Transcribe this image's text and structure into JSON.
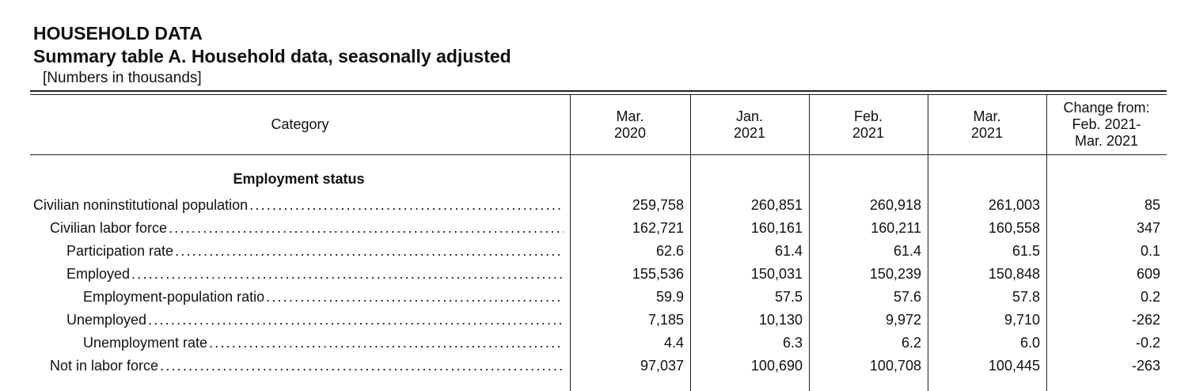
{
  "header": {
    "title": "HOUSEHOLD DATA",
    "subtitle": "Summary table A. Household data, seasonally adjusted",
    "note": "[Numbers in thousands]"
  },
  "table": {
    "columns": [
      [
        "Category"
      ],
      [
        "Mar.",
        "2020"
      ],
      [
        "Jan.",
        "2021"
      ],
      [
        "Feb.",
        "2021"
      ],
      [
        "Mar.",
        "2021"
      ],
      [
        "Change from:",
        "Feb. 2021-",
        "Mar. 2021"
      ]
    ],
    "section": "Employment status",
    "rows": [
      {
        "label": "Civilian noninstitutional population",
        "indent": 0,
        "values": [
          "259,758",
          "260,851",
          "260,918",
          "261,003",
          "85"
        ]
      },
      {
        "label": "Civilian labor force",
        "indent": 1,
        "values": [
          "162,721",
          "160,161",
          "160,211",
          "160,558",
          "347"
        ]
      },
      {
        "label": "Participation rate",
        "indent": 2,
        "values": [
          "62.6",
          "61.4",
          "61.4",
          "61.5",
          "0.1"
        ]
      },
      {
        "label": "Employed",
        "indent": 2,
        "values": [
          "155,536",
          "150,031",
          "150,239",
          "150,848",
          "609"
        ]
      },
      {
        "label": "Employment-population ratio",
        "indent": 3,
        "values": [
          "59.9",
          "57.5",
          "57.6",
          "57.8",
          "0.2"
        ]
      },
      {
        "label": "Unemployed",
        "indent": 2,
        "values": [
          "7,185",
          "10,130",
          "9,972",
          "9,710",
          "-262"
        ]
      },
      {
        "label": "Unemployment rate",
        "indent": 3,
        "values": [
          "4.4",
          "6.3",
          "6.2",
          "6.0",
          "-0.2"
        ]
      },
      {
        "label": "Not in labor force",
        "indent": 1,
        "values": [
          "97,037",
          "100,690",
          "100,708",
          "100,445",
          "-263"
        ]
      }
    ]
  }
}
